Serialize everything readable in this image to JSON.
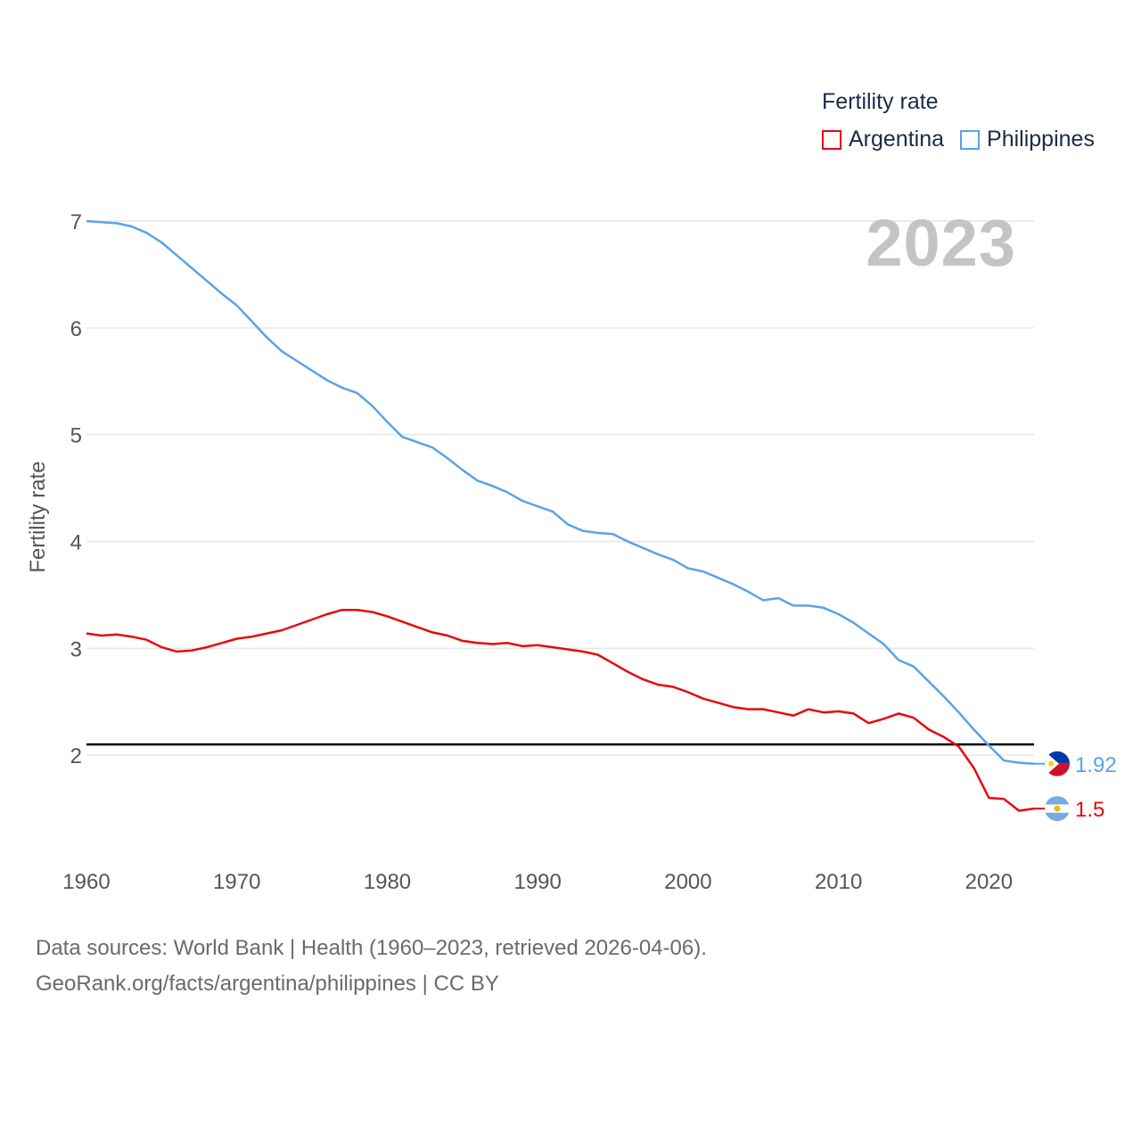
{
  "legend": {
    "title": "Fertility rate",
    "items": [
      {
        "label": "Argentina",
        "color": "#e8080d"
      },
      {
        "label": "Philippines",
        "color": "#5aa3e8"
      }
    ]
  },
  "year_label": "2023",
  "footer": {
    "line1": "Data sources: World Bank | Health (1960–2023, retrieved 2026-04-06).",
    "line2": "GeoRank.org/facts/argentina/philippines | CC BY"
  },
  "chart_data": {
    "type": "line",
    "title": "Fertility rate",
    "xlabel": "",
    "ylabel": "Fertility rate",
    "xlim": [
      1960,
      2023
    ],
    "ylim": [
      1.0,
      7.0
    ],
    "x_ticks": [
      1960,
      1970,
      1980,
      1990,
      2000,
      2010,
      2020
    ],
    "y_ticks": [
      2,
      3,
      4,
      5,
      6,
      7
    ],
    "grid": true,
    "reference_line": {
      "y": 2.1,
      "color": "#000000"
    },
    "x": [
      1960,
      1961,
      1962,
      1963,
      1964,
      1965,
      1966,
      1967,
      1968,
      1969,
      1970,
      1971,
      1972,
      1973,
      1974,
      1975,
      1976,
      1977,
      1978,
      1979,
      1980,
      1981,
      1982,
      1983,
      1984,
      1985,
      1986,
      1987,
      1988,
      1989,
      1990,
      1991,
      1992,
      1993,
      1994,
      1995,
      1996,
      1997,
      1998,
      1999,
      2000,
      2001,
      2002,
      2003,
      2004,
      2005,
      2006,
      2007,
      2008,
      2009,
      2010,
      2011,
      2012,
      2013,
      2014,
      2015,
      2016,
      2017,
      2018,
      2019,
      2020,
      2021,
      2022,
      2023
    ],
    "series": [
      {
        "name": "Argentina",
        "color": "#e8080d",
        "end_label": "1.5",
        "values": [
          3.14,
          3.12,
          3.13,
          3.11,
          3.08,
          3.01,
          2.97,
          2.98,
          3.01,
          3.05,
          3.09,
          3.11,
          3.14,
          3.17,
          3.22,
          3.27,
          3.32,
          3.36,
          3.36,
          3.34,
          3.3,
          3.25,
          3.2,
          3.15,
          3.12,
          3.07,
          3.05,
          3.04,
          3.05,
          3.02,
          3.03,
          3.01,
          2.99,
          2.97,
          2.94,
          2.86,
          2.78,
          2.71,
          2.66,
          2.64,
          2.59,
          2.53,
          2.49,
          2.45,
          2.43,
          2.43,
          2.4,
          2.37,
          2.43,
          2.4,
          2.41,
          2.39,
          2.3,
          2.34,
          2.39,
          2.35,
          2.24,
          2.17,
          2.08,
          1.88,
          1.6,
          1.59,
          1.48,
          1.5
        ]
      },
      {
        "name": "Philippines",
        "color": "#5aa3e8",
        "end_label": "1.92",
        "values": [
          7.0,
          6.99,
          6.98,
          6.95,
          6.89,
          6.8,
          6.68,
          6.56,
          6.44,
          6.32,
          6.21,
          6.06,
          5.91,
          5.78,
          5.69,
          5.6,
          5.51,
          5.44,
          5.39,
          5.27,
          5.12,
          4.98,
          4.93,
          4.88,
          4.78,
          4.67,
          4.57,
          4.52,
          4.46,
          4.38,
          4.33,
          4.28,
          4.16,
          4.1,
          4.08,
          4.07,
          4.0,
          3.94,
          3.88,
          3.83,
          3.75,
          3.72,
          3.66,
          3.6,
          3.53,
          3.45,
          3.47,
          3.4,
          3.4,
          3.38,
          3.32,
          3.24,
          3.14,
          3.04,
          2.89,
          2.83,
          2.69,
          2.55,
          2.4,
          2.24,
          2.09,
          1.95,
          1.93,
          1.92
        ]
      }
    ]
  }
}
